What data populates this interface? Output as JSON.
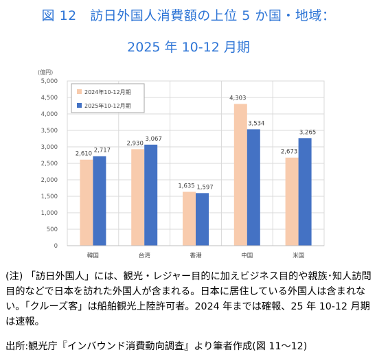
{
  "title_line1": "図 12　訪日外国人消費額の上位 5 か国・地域：",
  "title_line2": "2025 年 10-12 月期",
  "note": "(注) 「訪日外国人」には、観光・レジャー目的に加えビジネス目的や親族･知人訪問目的などで日本を訪れた外国人が含まれる。日本に居住している外国人は含まれない。「クルーズ客」は船舶観光上陸許可者。2024 年までは確報、25 年 10-12 月期は速報。",
  "source": "出所:観光庁『インバウンド消費動向調査』より筆者作成(図 11～12)",
  "colors": {
    "series_2024": "#F8CBAD",
    "series_2025": "#4472C4",
    "title": "#2E75D6"
  },
  "chart_data": {
    "type": "bar",
    "ylabel": "(億円)",
    "ylim": [
      0,
      5000
    ],
    "yticks": [
      0,
      500,
      1000,
      1500,
      2000,
      2500,
      3000,
      3500,
      4000,
      4500,
      5000
    ],
    "ytick_labels": [
      "0",
      "500",
      "1,000",
      "1,500",
      "2,000",
      "2,500",
      "3,000",
      "3,500",
      "4,000",
      "4,500",
      "5,000"
    ],
    "categories": [
      "韓国",
      "台湾",
      "香港",
      "中国",
      "米国"
    ],
    "grid": true,
    "legend_position": "top-left",
    "series": [
      {
        "name": "2024年10-12月期",
        "values": [
          2610,
          2930,
          1635,
          4303,
          2673
        ],
        "labels": [
          "2,610",
          "2,930",
          "1,635",
          "4,303",
          "2,673"
        ]
      },
      {
        "name": "2025年10-12月期",
        "values": [
          2717,
          3067,
          1597,
          3534,
          3265
        ],
        "labels": [
          "2,717",
          "3,067",
          "1,597",
          "3,534",
          "3,265"
        ]
      }
    ]
  }
}
